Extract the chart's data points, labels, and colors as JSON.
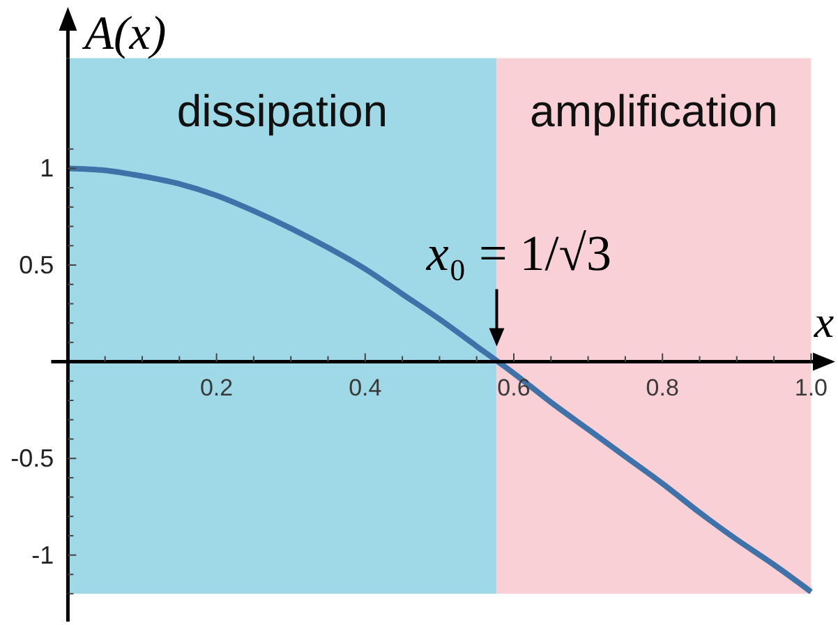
{
  "chart_data": {
    "type": "line",
    "xlabel": "x",
    "ylabel": "A(x)",
    "x": [
      0,
      0.05,
      0.1,
      0.15,
      0.2,
      0.25,
      0.3,
      0.35,
      0.4,
      0.45,
      0.5,
      0.55,
      0.6,
      0.65,
      0.7,
      0.75,
      0.8,
      0.85,
      0.9,
      0.95,
      1
    ],
    "series": [
      {
        "color": "#3f72a9",
        "values": [
          1,
          0.99,
          0.96,
          0.92,
          0.86,
          0.78,
          0.69,
          0.59,
          0.48,
          0.35,
          0.22,
          0.08,
          -0.06,
          -0.21,
          -0.35,
          -0.49,
          -0.63,
          -0.78,
          -0.92,
          -1.05,
          -1.19
        ]
      }
    ],
    "xlim": [
      0,
      1
    ],
    "ylim": [
      -1.2,
      1.57
    ],
    "xticks": [
      {
        "value": 0.05,
        "label": null
      },
      {
        "value": 0.1,
        "label": null
      },
      {
        "value": 0.15,
        "label": null
      },
      0.2,
      {
        "value": 0.25,
        "label": null
      },
      {
        "value": 0.3,
        "label": null
      },
      {
        "value": 0.35,
        "label": null
      },
      0.4,
      {
        "value": 0.45,
        "label": null
      },
      {
        "value": 0.5,
        "label": null
      },
      {
        "value": 0.55,
        "label": null
      },
      0.6,
      {
        "value": 0.65,
        "label": null
      },
      {
        "value": 0.7,
        "label": null
      },
      {
        "value": 0.75,
        "label": null
      },
      0.8,
      {
        "value": 0.85,
        "label": null
      },
      {
        "value": 0.9,
        "label": null
      },
      {
        "value": 0.95,
        "label": null
      },
      {
        "value": 1,
        "label": "1.0"
      }
    ],
    "yticks": [
      {
        "value": -1.2,
        "label": null
      },
      {
        "value": -1.1,
        "label": null
      },
      -1,
      {
        "value": -0.9,
        "label": null
      },
      {
        "value": -0.8,
        "label": null
      },
      {
        "value": -0.7,
        "label": null
      },
      {
        "value": -0.6,
        "label": null
      },
      -0.5,
      {
        "value": -0.4,
        "label": null
      },
      {
        "value": -0.3,
        "label": null
      },
      {
        "value": -0.2,
        "label": null
      },
      {
        "value": -0.1,
        "label": null
      },
      {
        "value": 0.1,
        "label": null
      },
      {
        "value": 0.2,
        "label": null
      },
      {
        "value": 0.3,
        "label": null
      },
      {
        "value": 0.4,
        "label": null
      },
      0.5,
      {
        "value": 0.6,
        "label": null
      },
      {
        "value": 0.7,
        "label": null
      },
      {
        "value": 0.8,
        "label": null
      },
      {
        "value": 0.9,
        "label": null
      },
      1,
      {
        "value": 1.1,
        "label": null
      }
    ],
    "bands": [
      {
        "axis": "x",
        "from": 0,
        "to": 0.577,
        "label": "dissipation",
        "color": "#9fd8e6"
      },
      {
        "axis": "x",
        "from": 0.577,
        "to": 1,
        "label": "amplification",
        "color": "#f8d0d5"
      }
    ],
    "annotations": [
      {
        "text": "x₀ = 1/√3",
        "x": 0.577,
        "y": 0
      }
    ],
    "line_style": "solid"
  }
}
